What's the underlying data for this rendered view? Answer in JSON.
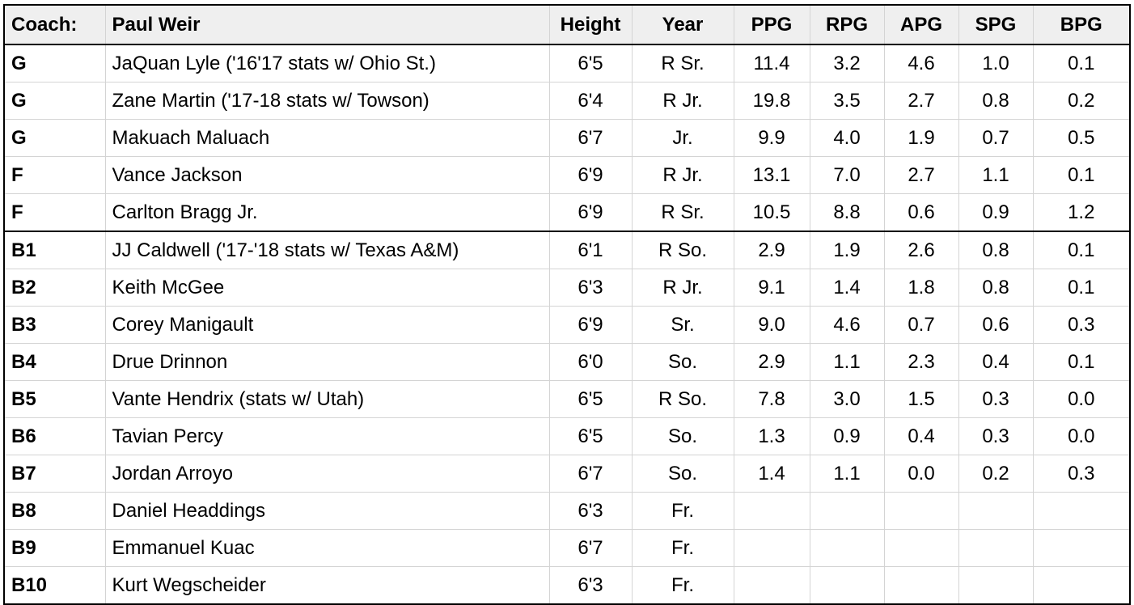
{
  "roster": {
    "header": {
      "coach_label": "Coach:",
      "coach_name": "Paul Weir",
      "columns": [
        "Height",
        "Year",
        "PPG",
        "RPG",
        "APG",
        "SPG",
        "BPG"
      ]
    },
    "rows": [
      {
        "pos": "G",
        "name": "JaQuan Lyle ('16'17 stats w/ Ohio St.)",
        "height": "6'5",
        "year": "R Sr.",
        "ppg": "11.4",
        "rpg": "3.2",
        "apg": "4.6",
        "spg": "1.0",
        "bpg": "0.1"
      },
      {
        "pos": "G",
        "name": "Zane Martin ('17-18 stats w/ Towson)",
        "height": "6'4",
        "year": "R Jr.",
        "ppg": "19.8",
        "rpg": "3.5",
        "apg": "2.7",
        "spg": "0.8",
        "bpg": "0.2"
      },
      {
        "pos": "G",
        "name": "Makuach Maluach",
        "height": "6'7",
        "year": "Jr.",
        "ppg": "9.9",
        "rpg": "4.0",
        "apg": "1.9",
        "spg": "0.7",
        "bpg": "0.5"
      },
      {
        "pos": "F",
        "name": "Vance Jackson",
        "height": "6'9",
        "year": "R Jr.",
        "ppg": "13.1",
        "rpg": "7.0",
        "apg": "2.7",
        "spg": "1.1",
        "bpg": "0.1"
      },
      {
        "pos": "F",
        "name": "Carlton Bragg Jr.",
        "height": "6'9",
        "year": "R Sr.",
        "ppg": "10.5",
        "rpg": "8.8",
        "apg": "0.6",
        "spg": "0.9",
        "bpg": "1.2"
      },
      {
        "pos": "B1",
        "name": "JJ Caldwell ('17-'18 stats w/ Texas A&M)",
        "height": "6'1",
        "year": "R So.",
        "ppg": "2.9",
        "rpg": "1.9",
        "apg": "2.6",
        "spg": "0.8",
        "bpg": "0.1"
      },
      {
        "pos": "B2",
        "name": "Keith McGee",
        "height": "6'3",
        "year": "R Jr.",
        "ppg": "9.1",
        "rpg": "1.4",
        "apg": "1.8",
        "spg": "0.8",
        "bpg": "0.1"
      },
      {
        "pos": "B3",
        "name": "Corey Manigault",
        "height": "6'9",
        "year": "Sr.",
        "ppg": "9.0",
        "rpg": "4.6",
        "apg": "0.7",
        "spg": "0.6",
        "bpg": "0.3"
      },
      {
        "pos": "B4",
        "name": "Drue Drinnon",
        "height": "6'0",
        "year": "So.",
        "ppg": "2.9",
        "rpg": "1.1",
        "apg": "2.3",
        "spg": "0.4",
        "bpg": "0.1"
      },
      {
        "pos": "B5",
        "name": "Vante Hendrix (stats w/ Utah)",
        "height": "6'5",
        "year": "R So.",
        "ppg": "7.8",
        "rpg": "3.0",
        "apg": "1.5",
        "spg": "0.3",
        "bpg": "0.0"
      },
      {
        "pos": "B6",
        "name": "Tavian Percy",
        "height": "6'5",
        "year": "So.",
        "ppg": "1.3",
        "rpg": "0.9",
        "apg": "0.4",
        "spg": "0.3",
        "bpg": "0.0"
      },
      {
        "pos": "B7",
        "name": "Jordan Arroyo",
        "height": "6'7",
        "year": "So.",
        "ppg": "1.4",
        "rpg": "1.1",
        "apg": "0.0",
        "spg": "0.2",
        "bpg": "0.3"
      },
      {
        "pos": "B8",
        "name": "Daniel Headdings",
        "height": "6'3",
        "year": "Fr.",
        "ppg": "",
        "rpg": "",
        "apg": "",
        "spg": "",
        "bpg": ""
      },
      {
        "pos": "B9",
        "name": "Emmanuel Kuac",
        "height": "6'7",
        "year": "Fr.",
        "ppg": "",
        "rpg": "",
        "apg": "",
        "spg": "",
        "bpg": ""
      },
      {
        "pos": "B10",
        "name": "Kurt Wegscheider",
        "height": "6'3",
        "year": "Fr.",
        "ppg": "",
        "rpg": "",
        "apg": "",
        "spg": "",
        "bpg": ""
      }
    ]
  }
}
